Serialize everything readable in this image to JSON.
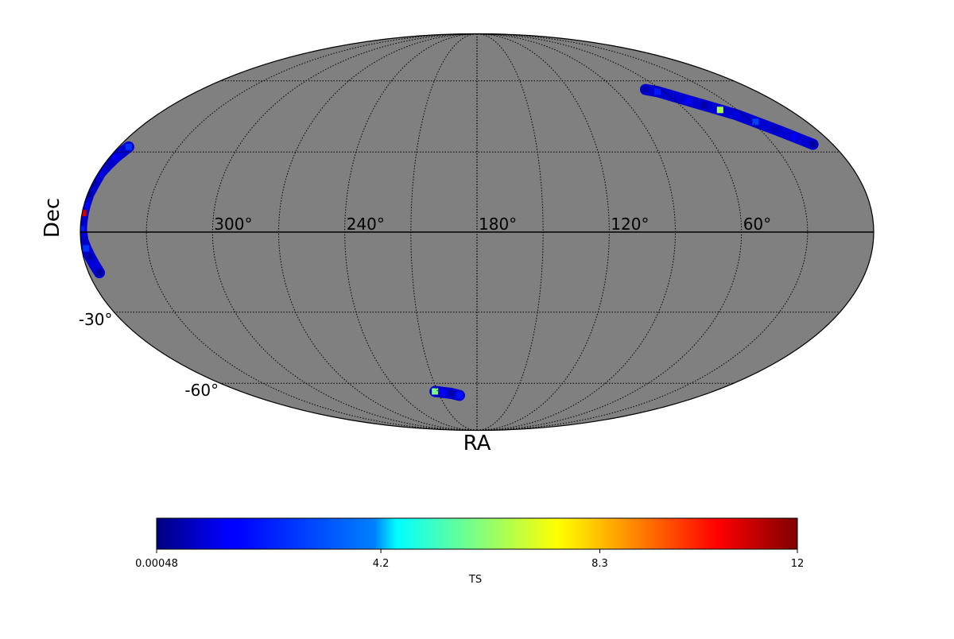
{
  "chart_data": {
    "type": "heatmap",
    "projection": "mollweide",
    "map_background_color": "#808080",
    "grid": true,
    "axis_labels": {
      "xlabel": "RA",
      "ylabel": "Dec"
    },
    "ra_tick_labels": [
      {
        "ra": 300,
        "label": "300°"
      },
      {
        "ra": 240,
        "label": "240°"
      },
      {
        "ra": 180,
        "label": "180°"
      },
      {
        "ra": 120,
        "label": "120°"
      },
      {
        "ra": 60,
        "label": "60°"
      }
    ],
    "dec_tick_labels": [
      {
        "dec": -30,
        "label": "-30°"
      },
      {
        "dec": -60,
        "label": "-60°"
      }
    ],
    "colorbar": {
      "label": "TS",
      "colormap": "jet",
      "vmin": 0.00048,
      "vmax": 12,
      "tick_labels": [
        "0.00048",
        "4.2",
        "8.3",
        "12"
      ],
      "tick_values": [
        0.00048,
        4.2,
        8.3,
        12
      ]
    },
    "regions": [
      {
        "id": "region-west-limb",
        "points": [
          {
            "ra": 355,
            "dec": 32,
            "ts": 2.5
          },
          {
            "ra": 357,
            "dec": 28,
            "ts": 1.2
          },
          {
            "ra": 358,
            "dec": 25,
            "ts": 0.6
          },
          {
            "ra": 359,
            "dec": 22,
            "ts": 1.0
          },
          {
            "ra": 359,
            "dec": 18,
            "ts": 0.5
          },
          {
            "ra": 359.5,
            "dec": 14,
            "ts": 0.3
          },
          {
            "ra": 359.5,
            "dec": 10,
            "ts": 1.5
          },
          {
            "ra": 359.5,
            "dec": 7,
            "ts": 11.0
          },
          {
            "ra": 359.5,
            "dec": 4,
            "ts": 0.8
          },
          {
            "ra": 359.5,
            "dec": 1,
            "ts": 2.0
          },
          {
            "ra": 359,
            "dec": -3,
            "ts": 0.6
          },
          {
            "ra": 358,
            "dec": -6,
            "ts": 2.5
          },
          {
            "ra": 357,
            "dec": -9,
            "ts": 0.4
          },
          {
            "ra": 356,
            "dec": -12,
            "ts": 1.0
          },
          {
            "ra": 355,
            "dec": -15,
            "ts": 0.3
          }
        ]
      },
      {
        "id": "region-north-east",
        "points": [
          {
            "ra": 70,
            "dec": 56,
            "ts": 0.5
          },
          {
            "ra": 64,
            "dec": 55,
            "ts": 2.0
          },
          {
            "ra": 58,
            "dec": 53,
            "ts": 0.8
          },
          {
            "ra": 52,
            "dec": 51,
            "ts": 1.5
          },
          {
            "ra": 46,
            "dec": 49,
            "ts": 0.4
          },
          {
            "ra": 40,
            "dec": 47,
            "ts": 6.5
          },
          {
            "ra": 34,
            "dec": 45,
            "ts": 1.0
          },
          {
            "ra": 28,
            "dec": 42,
            "ts": 2.8
          },
          {
            "ra": 22,
            "dec": 39,
            "ts": 0.6
          },
          {
            "ra": 16,
            "dec": 36,
            "ts": 1.2
          },
          {
            "ra": 10,
            "dec": 33,
            "ts": 0.3
          }
        ]
      },
      {
        "id": "region-south",
        "points": [
          {
            "ra": 212,
            "dec": -64,
            "ts": 6.0
          },
          {
            "ra": 206,
            "dec": -64.5,
            "ts": 1.2
          },
          {
            "ra": 200,
            "dec": -65,
            "ts": 0.5
          },
          {
            "ra": 194,
            "dec": -66,
            "ts": 1.8
          }
        ]
      }
    ]
  }
}
